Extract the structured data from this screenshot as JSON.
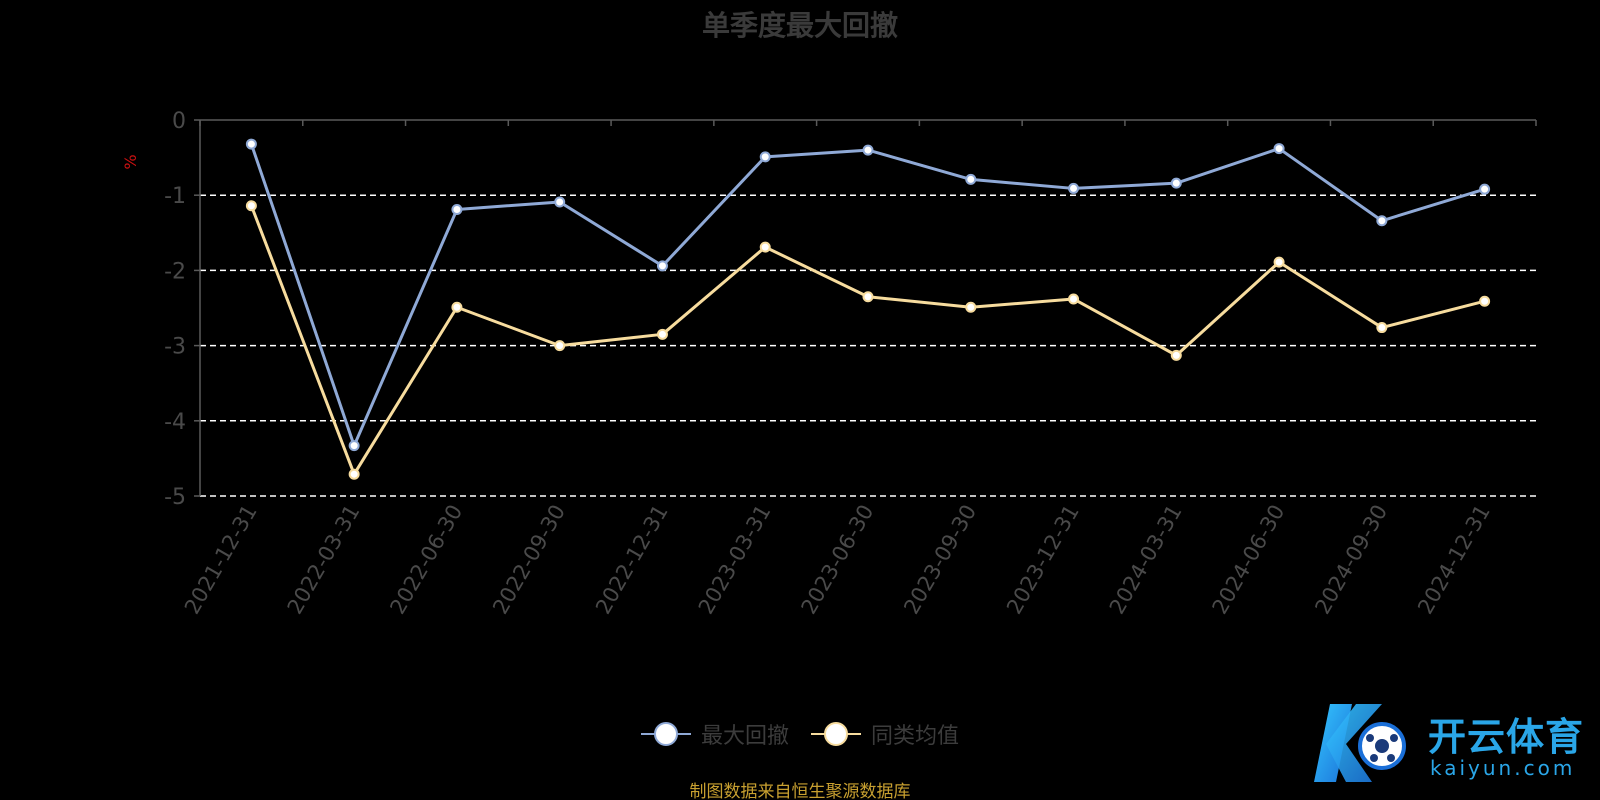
{
  "title": "单季度最大回撤",
  "source": "制图数据来自恒生聚源数据库",
  "logo": {
    "name": "开云体育",
    "sub": "kaiyun.com"
  },
  "colors": {
    "max_drawdown": "#8fa9d6",
    "peer_avg": "#f7dc9e",
    "axis": "#5a5a5a",
    "grid": "#ffffff",
    "tick_text": "#4a4a4a",
    "unit": "#cc1111"
  },
  "legend": [
    {
      "label": "最大回撤",
      "color": "#8fa9d6"
    },
    {
      "label": "同类均值",
      "color": "#f7dc9e"
    }
  ],
  "chart_data": {
    "type": "line",
    "title": "单季度最大回撤",
    "ylabel": "%",
    "ylim": [
      -5,
      0
    ],
    "yticks": [
      0,
      -1,
      -2,
      -3,
      -4,
      -5
    ],
    "grid": true,
    "legend_position": "bottom",
    "x": [
      "2021-12-31",
      "2022-03-31",
      "2022-06-30",
      "2022-09-30",
      "2022-12-31",
      "2023-03-31",
      "2023-06-30",
      "2023-09-30",
      "2023-12-31",
      "2024-03-31",
      "2024-06-30",
      "2024-09-30",
      "2024-12-31"
    ],
    "series": [
      {
        "name": "最大回撤",
        "color": "#8fa9d6",
        "values": [
          -0.32,
          -4.33,
          -1.19,
          -1.09,
          -1.94,
          -0.49,
          -0.4,
          -0.79,
          -0.91,
          -0.84,
          -0.38,
          -1.34,
          -0.92
        ]
      },
      {
        "name": "同类均值",
        "color": "#f7dc9e",
        "values": [
          -1.14,
          -4.71,
          -2.49,
          -3.0,
          -2.85,
          -1.69,
          -2.35,
          -2.49,
          -2.38,
          -3.13,
          -1.89,
          -2.76,
          -2.41
        ]
      }
    ]
  }
}
